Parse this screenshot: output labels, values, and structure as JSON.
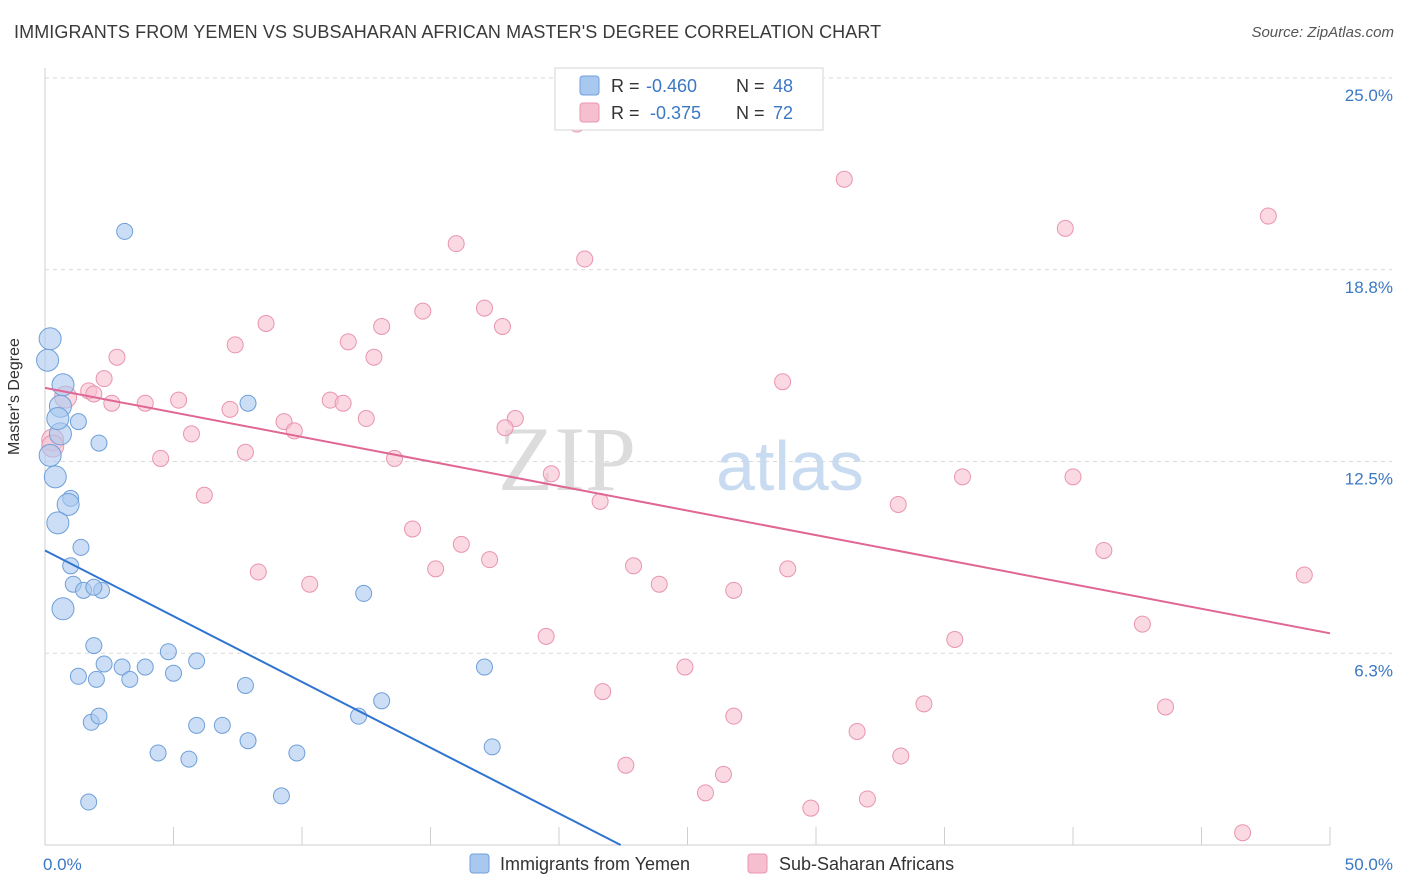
{
  "header": {
    "title": "IMMIGRANTS FROM YEMEN VS SUBSAHARAN AFRICAN MASTER'S DEGREE CORRELATION CHART",
    "source": "Source: ZipAtlas.com"
  },
  "watermark": {
    "part1": "ZIP",
    "part2": "atlas"
  },
  "colors": {
    "blue_fill": "#a9c8ef",
    "blue_stroke": "#6f9fd8",
    "blue_line": "#2f74d0",
    "pink_fill": "#f6bfd0",
    "pink_stroke": "#e994b0",
    "pink_line": "#e06694",
    "tick_label": "#3b78c4",
    "grid": "#d9d9d9"
  },
  "legend": {
    "rows": [
      {
        "r_label": "R =",
        "r_value": "-0.460",
        "n_label": "N =",
        "n_value": "48"
      },
      {
        "r_label": "R =",
        "r_value": "-0.375",
        "n_label": "N =",
        "n_value": "72"
      }
    ]
  },
  "chart_data": {
    "type": "scatter",
    "title": "IMMIGRANTS FROM YEMEN VS SUBSAHARAN AFRICAN MASTER'S DEGREE CORRELATION CHART",
    "ylabel": "Master's Degree",
    "xlabel": "",
    "xlim": [
      0,
      50
    ],
    "ylim": [
      0,
      25
    ],
    "x_tick_labels": [
      "0.0%",
      "50.0%"
    ],
    "y_ticks": [
      6.25,
      12.5,
      18.75,
      25.0
    ],
    "y_tick_labels": [
      "6.3%",
      "12.5%",
      "18.8%",
      "25.0%"
    ],
    "grid": "horizontal dashed",
    "legend_position": "top-center",
    "series": [
      {
        "name": "Immigrants from Yemen",
        "r": -0.46,
        "n": 48,
        "trend": {
          "x": [
            0,
            22.4
          ],
          "y": [
            9.6,
            0
          ]
        },
        "points": [
          [
            0.2,
            16.5
          ],
          [
            0.1,
            15.8
          ],
          [
            0.7,
            15.0
          ],
          [
            0.6,
            14.3
          ],
          [
            0.6,
            13.4
          ],
          [
            0.2,
            12.7
          ],
          [
            0.4,
            12.0
          ],
          [
            1.0,
            11.3
          ],
          [
            0.9,
            11.1
          ],
          [
            0.5,
            10.5
          ],
          [
            1.4,
            9.7
          ],
          [
            1.0,
            9.1
          ],
          [
            1.1,
            8.5
          ],
          [
            1.5,
            8.3
          ],
          [
            0.7,
            7.7
          ],
          [
            2.2,
            8.3
          ],
          [
            1.9,
            8.4
          ],
          [
            3.1,
            20.0
          ],
          [
            1.3,
            13.8
          ],
          [
            2.1,
            13.1
          ],
          [
            7.9,
            14.4
          ],
          [
            12.4,
            8.2
          ],
          [
            1.9,
            6.5
          ],
          [
            2.3,
            5.9
          ],
          [
            3.0,
            5.8
          ],
          [
            3.9,
            5.8
          ],
          [
            4.8,
            6.3
          ],
          [
            5.9,
            6.0
          ],
          [
            1.3,
            5.5
          ],
          [
            2.0,
            5.4
          ],
          [
            3.3,
            5.4
          ],
          [
            5.0,
            5.6
          ],
          [
            7.8,
            5.2
          ],
          [
            17.1,
            5.8
          ],
          [
            1.8,
            4.0
          ],
          [
            2.1,
            4.2
          ],
          [
            5.9,
            3.9
          ],
          [
            6.9,
            3.9
          ],
          [
            7.9,
            3.4
          ],
          [
            13.1,
            4.7
          ],
          [
            12.2,
            4.2
          ],
          [
            4.4,
            3.0
          ],
          [
            5.6,
            2.8
          ],
          [
            9.8,
            3.0
          ],
          [
            17.4,
            3.2
          ],
          [
            1.7,
            1.4
          ],
          [
            9.2,
            1.6
          ],
          [
            0.5,
            13.9
          ]
        ]
      },
      {
        "name": "Sub-Saharan Africans",
        "r": -0.375,
        "n": 72,
        "trend": {
          "x": [
            0,
            50
          ],
          "y": [
            14.9,
            6.9
          ]
        },
        "points": [
          [
            20.7,
            23.5
          ],
          [
            25.7,
            23.7
          ],
          [
            31.1,
            21.7
          ],
          [
            47.6,
            20.5
          ],
          [
            39.7,
            20.1
          ],
          [
            16.0,
            19.6
          ],
          [
            21.0,
            19.1
          ],
          [
            17.1,
            17.5
          ],
          [
            14.7,
            17.4
          ],
          [
            17.8,
            16.9
          ],
          [
            8.6,
            17.0
          ],
          [
            13.1,
            16.9
          ],
          [
            11.8,
            16.4
          ],
          [
            7.4,
            16.3
          ],
          [
            12.8,
            15.9
          ],
          [
            2.8,
            15.9
          ],
          [
            2.3,
            15.2
          ],
          [
            1.7,
            14.8
          ],
          [
            0.8,
            14.6
          ],
          [
            2.6,
            14.4
          ],
          [
            3.9,
            14.4
          ],
          [
            5.2,
            14.5
          ],
          [
            11.1,
            14.5
          ],
          [
            11.6,
            14.4
          ],
          [
            7.2,
            14.2
          ],
          [
            12.5,
            13.9
          ],
          [
            18.3,
            13.9
          ],
          [
            9.3,
            13.8
          ],
          [
            17.9,
            13.6
          ],
          [
            9.7,
            13.5
          ],
          [
            5.7,
            13.4
          ],
          [
            7.8,
            12.8
          ],
          [
            4.5,
            12.6
          ],
          [
            13.6,
            12.6
          ],
          [
            0.3,
            13.2
          ],
          [
            19.7,
            12.1
          ],
          [
            21.6,
            11.2
          ],
          [
            6.2,
            11.4
          ],
          [
            28.7,
            15.1
          ],
          [
            33.2,
            11.1
          ],
          [
            35.7,
            12.0
          ],
          [
            40.0,
            12.0
          ],
          [
            14.3,
            10.3
          ],
          [
            16.2,
            9.8
          ],
          [
            17.3,
            9.3
          ],
          [
            15.2,
            9.0
          ],
          [
            22.9,
            9.1
          ],
          [
            8.3,
            8.9
          ],
          [
            10.3,
            8.5
          ],
          [
            23.9,
            8.5
          ],
          [
            26.8,
            8.3
          ],
          [
            28.9,
            9.0
          ],
          [
            41.2,
            9.6
          ],
          [
            49.0,
            8.8
          ],
          [
            19.5,
            6.8
          ],
          [
            42.7,
            7.2
          ],
          [
            35.4,
            6.7
          ],
          [
            24.9,
            5.8
          ],
          [
            21.7,
            5.0
          ],
          [
            34.2,
            4.6
          ],
          [
            43.6,
            4.5
          ],
          [
            26.8,
            4.2
          ],
          [
            31.6,
            3.7
          ],
          [
            33.3,
            2.9
          ],
          [
            22.6,
            2.6
          ],
          [
            26.4,
            2.3
          ],
          [
            25.7,
            1.7
          ],
          [
            29.8,
            1.2
          ],
          [
            32.0,
            1.5
          ],
          [
            46.6,
            0.4
          ],
          [
            0.3,
            13.0
          ],
          [
            1.9,
            14.7
          ]
        ]
      }
    ]
  },
  "bottom_legend": {
    "series1_label": "Immigrants from Yemen",
    "series2_label": "Sub-Saharan Africans"
  }
}
